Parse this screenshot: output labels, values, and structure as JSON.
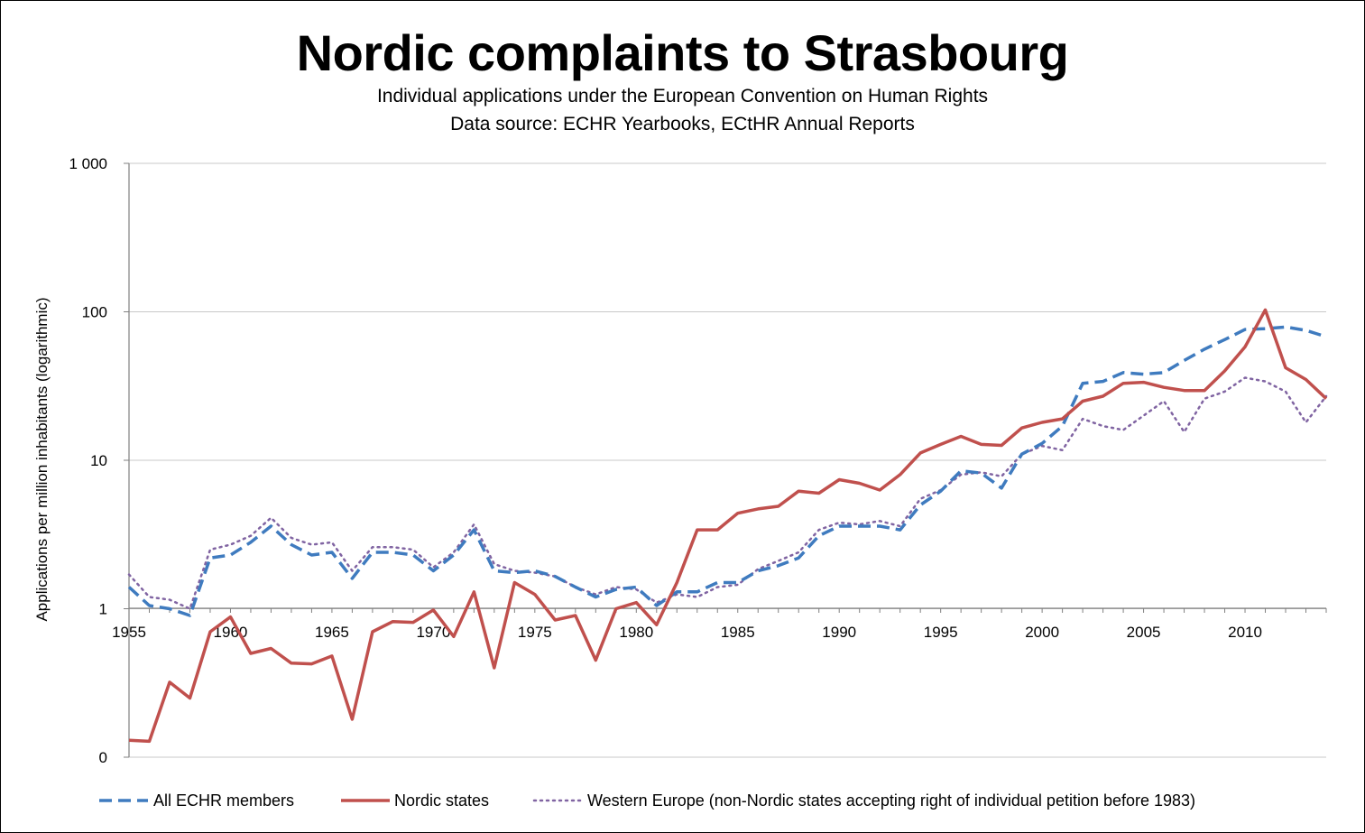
{
  "chart_data": {
    "type": "line",
    "title": "Nordic complaints to Strasbourg",
    "subtitle": [
      "Individual applications under the European Convention on Human Rights",
      "Data source: ECHR Yearbooks, ECtHR Annual Reports"
    ],
    "xlabel": "",
    "ylabel": "Applications per million inhabitants (logarithmic)",
    "yscale": "log",
    "ylim": [
      0.1,
      1000
    ],
    "yticks": [
      {
        "value": 0.1,
        "label": "0"
      },
      {
        "value": 1,
        "label": "1"
      },
      {
        "value": 10,
        "label": "10"
      },
      {
        "value": 100,
        "label": "100"
      },
      {
        "value": 1000,
        "label": "1 000"
      }
    ],
    "xlim": [
      1955,
      2014
    ],
    "xticks": [
      1955,
      1960,
      1965,
      1970,
      1975,
      1980,
      1985,
      1990,
      1995,
      2000,
      2005,
      2010
    ],
    "grid": true,
    "legend_position": "bottom",
    "x": [
      1955,
      1956,
      1957,
      1958,
      1959,
      1960,
      1961,
      1962,
      1963,
      1964,
      1965,
      1966,
      1967,
      1968,
      1969,
      1970,
      1971,
      1972,
      1973,
      1974,
      1975,
      1976,
      1977,
      1978,
      1979,
      1980,
      1981,
      1982,
      1983,
      1984,
      1985,
      1986,
      1987,
      1988,
      1989,
      1990,
      1991,
      1992,
      1993,
      1994,
      1995,
      1996,
      1997,
      1998,
      1999,
      2000,
      2001,
      2002,
      2003,
      2004,
      2005,
      2006,
      2007,
      2008,
      2009,
      2010,
      2011,
      2012,
      2013,
      2014
    ],
    "series": [
      {
        "name": "All ECHR members",
        "color": "#3f7bbf",
        "style": "dashed",
        "values": [
          1.4,
          1.05,
          1.0,
          0.9,
          2.2,
          2.3,
          2.8,
          3.6,
          2.7,
          2.3,
          2.4,
          1.6,
          2.4,
          2.4,
          2.3,
          1.8,
          2.3,
          3.4,
          1.8,
          1.75,
          1.8,
          1.65,
          1.4,
          1.2,
          1.35,
          1.4,
          1.05,
          1.3,
          1.3,
          1.5,
          1.5,
          1.8,
          1.95,
          2.2,
          3.1,
          3.6,
          3.6,
          3.6,
          3.4,
          5.0,
          6.2,
          8.5,
          8.2,
          6.5,
          11.0,
          13.0,
          17.0,
          33.0,
          34.0,
          39.0,
          38.0,
          39.0,
          47.0,
          56.0,
          65.0,
          76.0,
          77.0,
          79.0,
          75.0,
          68.0
        ]
      },
      {
        "name": "Nordic states",
        "color": "#c0504d",
        "style": "solid",
        "values": [
          0.13,
          0.128,
          0.32,
          0.25,
          0.7,
          0.88,
          0.5,
          0.54,
          0.43,
          0.425,
          0.48,
          0.18,
          0.7,
          0.82,
          0.81,
          0.98,
          0.65,
          1.3,
          0.4,
          1.5,
          1.25,
          0.84,
          0.9,
          0.45,
          1.0,
          1.1,
          0.78,
          1.5,
          3.4,
          3.4,
          4.4,
          4.7,
          4.9,
          6.2,
          6.0,
          7.4,
          7.0,
          6.3,
          8.0,
          11.2,
          12.8,
          14.5,
          12.8,
          12.6,
          16.5,
          18.0,
          19.0,
          25.0,
          27.0,
          33.0,
          33.5,
          31.0,
          29.5,
          29.5,
          40.0,
          58.0,
          103.0,
          42.0,
          35.0,
          26.0
        ]
      },
      {
        "name": "Western Europe (non-Nordic states accepting right of individual petition before 1983)",
        "color": "#8064a2",
        "style": "dotted",
        "values": [
          1.7,
          1.2,
          1.15,
          1.0,
          2.5,
          2.7,
          3.1,
          4.1,
          3.0,
          2.7,
          2.8,
          1.8,
          2.6,
          2.6,
          2.5,
          1.9,
          2.4,
          3.7,
          2.0,
          1.8,
          1.75,
          1.65,
          1.4,
          1.25,
          1.4,
          1.35,
          1.1,
          1.25,
          1.2,
          1.4,
          1.45,
          1.85,
          2.1,
          2.4,
          3.4,
          3.8,
          3.7,
          3.9,
          3.6,
          5.5,
          6.3,
          8.0,
          8.3,
          7.8,
          11.0,
          12.5,
          11.7,
          19.0,
          17.0,
          16.0,
          20.0,
          25.0,
          15.5,
          26.0,
          29.0,
          36.0,
          34.0,
          29.0,
          18.0,
          27.0
        ]
      }
    ]
  }
}
